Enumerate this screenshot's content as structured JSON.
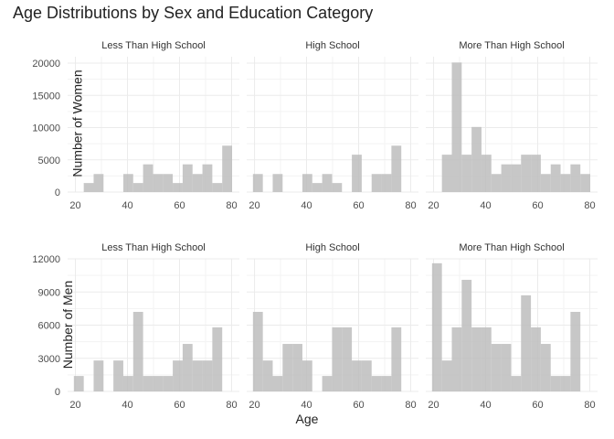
{
  "chart_data": {
    "type": "bar",
    "title": "Age Distributions by Sex and Education Category",
    "xlabel": "Age",
    "bin_width": 3.8,
    "bins_start": 19.4,
    "x_ticks": [
      20,
      40,
      60,
      80
    ],
    "grid": true,
    "colors": {
      "bar": "#bdbdbd",
      "grid": "#ebebeb",
      "text": "#333333",
      "axis_text": "#4d4d4d"
    },
    "rows": [
      {
        "ylabel": "Number of Women",
        "ylim": [
          0,
          21000
        ],
        "y_ticks": [
          0,
          5000,
          10000,
          15000,
          20000
        ],
        "panels": [
          {
            "label": "Less Than High School",
            "values": [
              0,
              1400,
              2800,
              0,
              0,
              2800,
              1400,
              4300,
              2800,
              2800,
              1400,
              4300,
              2800,
              4300,
              1400,
              7200
            ]
          },
          {
            "label": "High School",
            "values": [
              2800,
              0,
              2800,
              0,
              0,
              2800,
              1400,
              2800,
              1400,
              0,
              5800,
              0,
              2800,
              2800,
              7200,
              0
            ]
          },
          {
            "label": "More Than High School",
            "values": [
              0,
              5800,
              20100,
              5800,
              10100,
              5800,
              2800,
              4300,
              4300,
              5800,
              5800,
              2800,
              4300,
              2800,
              4300,
              2800
            ]
          }
        ]
      },
      {
        "ylabel": "Number of Men",
        "ylim": [
          0,
          12000
        ],
        "y_ticks": [
          0,
          3000,
          6000,
          9000,
          12000
        ],
        "panels": [
          {
            "label": "Less Than High School",
            "values": [
              1400,
              0,
              2800,
              0,
              2800,
              1400,
              7200,
              1400,
              1400,
              1400,
              2800,
              4300,
              2800,
              2800,
              5800,
              0
            ]
          },
          {
            "label": "High School",
            "values": [
              7200,
              2800,
              1400,
              4300,
              4300,
              2800,
              0,
              1400,
              5800,
              5800,
              2800,
              2800,
              1400,
              1400,
              5800,
              0
            ]
          },
          {
            "label": "More Than High School",
            "values": [
              11600,
              2800,
              5800,
              10100,
              5800,
              5800,
              4300,
              4300,
              1400,
              8700,
              5800,
              4300,
              1400,
              1400,
              7200,
              0
            ]
          }
        ]
      }
    ]
  }
}
